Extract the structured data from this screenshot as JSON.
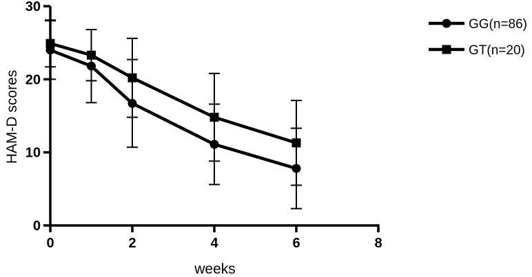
{
  "colors": {
    "series_line": "#000000",
    "axis": "#000000",
    "background": "#ffffff"
  },
  "chart_data": {
    "type": "line",
    "title": "",
    "xlabel": "weeks",
    "ylabel": "HAM-D scores",
    "xlim": [
      0,
      8
    ],
    "ylim": [
      0,
      30
    ],
    "xticks": [
      "0",
      "2",
      "4",
      "6",
      "8"
    ],
    "yticks": [
      "0",
      "10",
      "20",
      "30"
    ],
    "grid": false,
    "legend_position": "top-right",
    "series": [
      {
        "name": "GG(n=86)",
        "marker": "circle",
        "x": [
          0,
          1,
          2,
          4,
          6
        ],
        "y": [
          24.0,
          21.8,
          16.7,
          11.1,
          7.8
        ],
        "error": [
          4.0,
          5.0,
          6.0,
          5.5,
          5.5
        ]
      },
      {
        "name": "GT(n=20)",
        "marker": "square",
        "x": [
          0,
          1,
          2,
          4,
          6
        ],
        "y": [
          24.9,
          23.3,
          20.2,
          14.8,
          11.3
        ],
        "error": [
          3.2,
          3.5,
          5.4,
          6.0,
          5.8
        ]
      }
    ]
  }
}
